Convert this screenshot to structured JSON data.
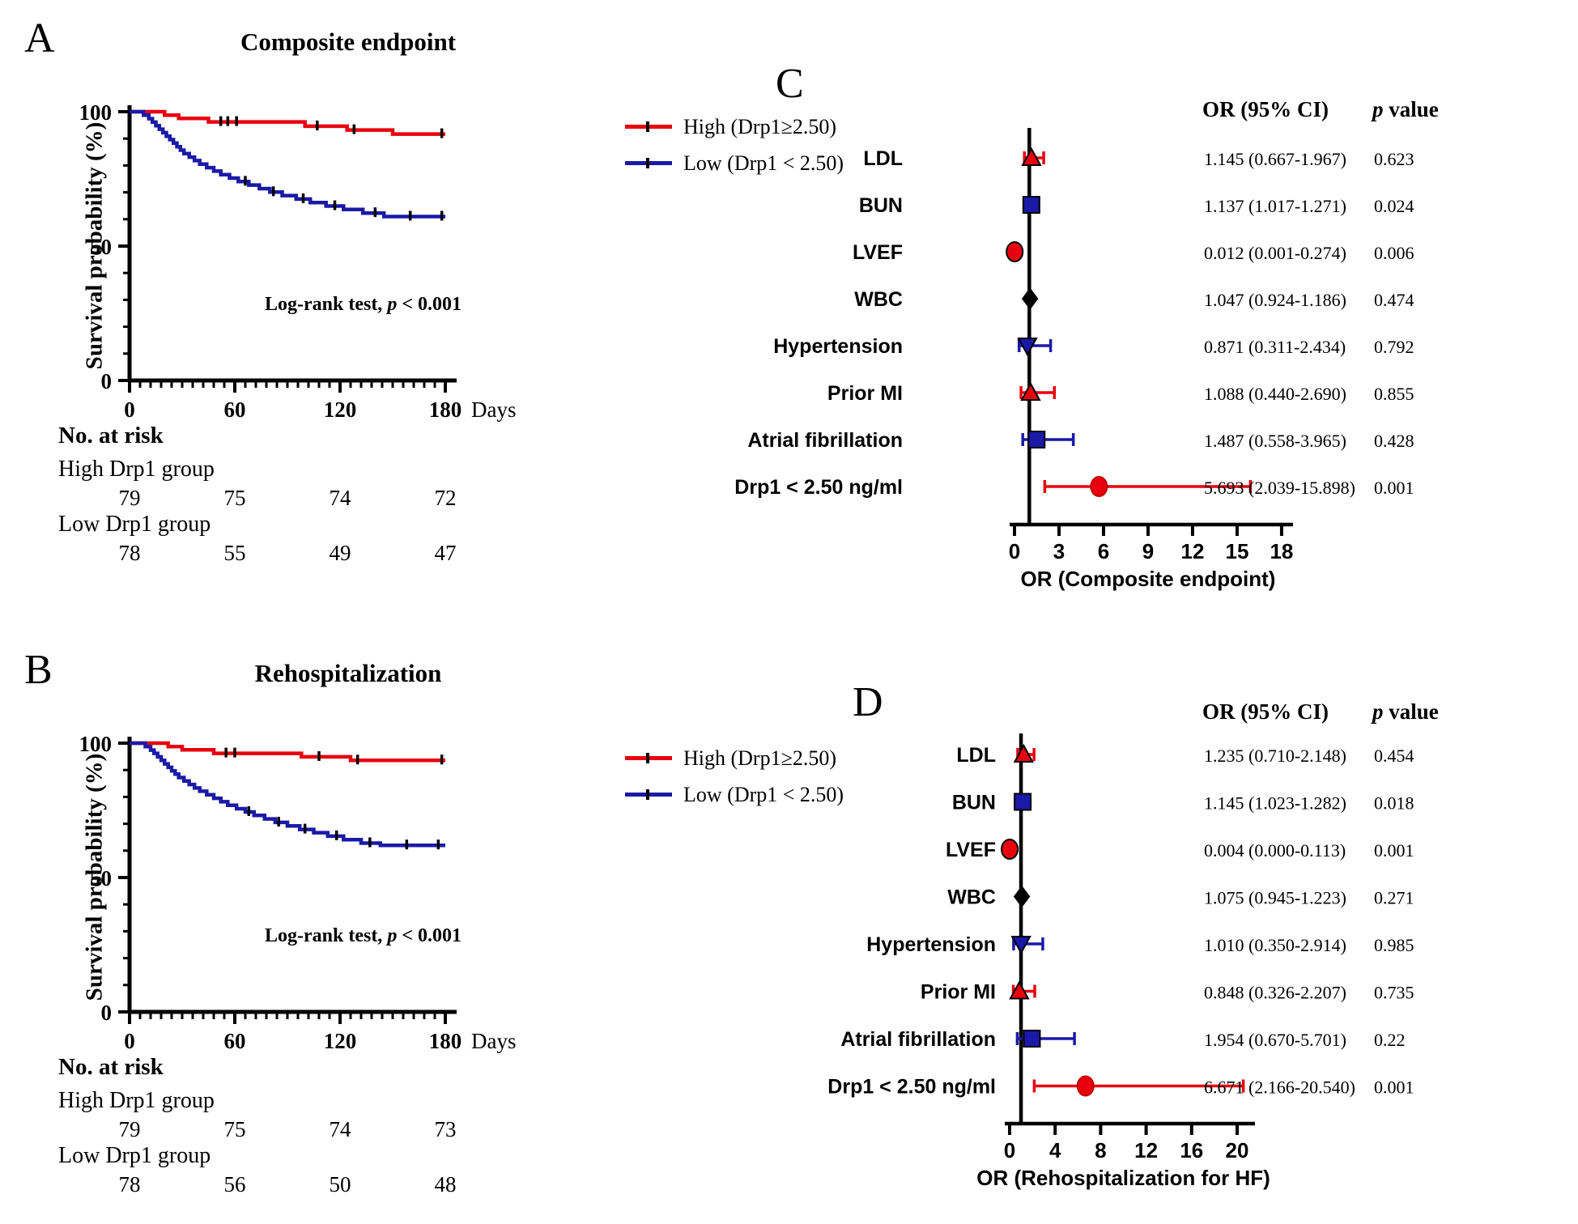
{
  "chart_data": [
    {
      "panel": "A",
      "type": "line",
      "subtype": "kaplan-meier-step",
      "title": "Composite endpoint",
      "xlabel": "Days",
      "ylabel": "Survival probability (%)",
      "xlim": [
        0,
        180
      ],
      "ylim": [
        0,
        100
      ],
      "x_ticks": [
        0,
        60,
        120,
        180
      ],
      "y_ticks": [
        100,
        50,
        0
      ],
      "grid": false,
      "legend_position": "right-top",
      "annotation": {
        "prefix": "Log-rank test,",
        "p": "p",
        "rest": "< 0.001"
      },
      "series": [
        {
          "name": "High (Drp1≥2.50)",
          "color": "#e8000d",
          "steps": [
            [
              0,
              100
            ],
            [
              20,
              100
            ],
            [
              20,
              98.7
            ],
            [
              28,
              98.7
            ],
            [
              28,
              97.5
            ],
            [
              45,
              97.5
            ],
            [
              45,
              96.2
            ],
            [
              100,
              96.2
            ],
            [
              100,
              94.6
            ],
            [
              124,
              94.6
            ],
            [
              124,
              93.2
            ],
            [
              150,
              93.2
            ],
            [
              150,
              91.7
            ],
            [
              180,
              91.7
            ]
          ],
          "censor_marks": [
            [
              52,
              96.2
            ],
            [
              56,
              96.2
            ],
            [
              61,
              96.2
            ],
            [
              107,
              94.6
            ],
            [
              128,
              93.2
            ],
            [
              178,
              91.7
            ]
          ]
        },
        {
          "name": "Low (Drp1 < 2.50)",
          "color": "#1a1aa6",
          "steps": [
            [
              0,
              100
            ],
            [
              8,
              100
            ],
            [
              8,
              98.7
            ],
            [
              11,
              98.7
            ],
            [
              11,
              97.4
            ],
            [
              13,
              97.4
            ],
            [
              13,
              96.1
            ],
            [
              15,
              96.1
            ],
            [
              15,
              94.8
            ],
            [
              17,
              94.8
            ],
            [
              17,
              93.5
            ],
            [
              19,
              93.5
            ],
            [
              19,
              92.2
            ],
            [
              21,
              92.2
            ],
            [
              21,
              90.9
            ],
            [
              23,
              90.9
            ],
            [
              23,
              89.6
            ],
            [
              25,
              89.6
            ],
            [
              25,
              88.3
            ],
            [
              27,
              88.3
            ],
            [
              27,
              87.0
            ],
            [
              29,
              87.0
            ],
            [
              29,
              85.7
            ],
            [
              31,
              85.7
            ],
            [
              31,
              84.4
            ],
            [
              34,
              84.4
            ],
            [
              34,
              83.1
            ],
            [
              37,
              83.1
            ],
            [
              37,
              81.8
            ],
            [
              40,
              81.8
            ],
            [
              40,
              80.5
            ],
            [
              44,
              80.5
            ],
            [
              44,
              79.2
            ],
            [
              48,
              79.2
            ],
            [
              48,
              77.9
            ],
            [
              52,
              77.9
            ],
            [
              52,
              76.6
            ],
            [
              57,
              76.6
            ],
            [
              57,
              75.3
            ],
            [
              62,
              75.3
            ],
            [
              62,
              74.0
            ],
            [
              68,
              74.0
            ],
            [
              68,
              72.7
            ],
            [
              74,
              72.7
            ],
            [
              74,
              71.4
            ],
            [
              80,
              71.4
            ],
            [
              80,
              70.1
            ],
            [
              87,
              70.1
            ],
            [
              87,
              68.8
            ],
            [
              95,
              68.8
            ],
            [
              95,
              67.5
            ],
            [
              103,
              67.5
            ],
            [
              103,
              66.2
            ],
            [
              112,
              66.2
            ],
            [
              112,
              64.9
            ],
            [
              122,
              64.9
            ],
            [
              122,
              63.6
            ],
            [
              133,
              63.6
            ],
            [
              133,
              62.3
            ],
            [
              145,
              62.3
            ],
            [
              145,
              61.0
            ],
            [
              180,
              61.0
            ]
          ],
          "censor_marks": [
            [
              66,
              74.0
            ],
            [
              82,
              70.1
            ],
            [
              99,
              67.5
            ],
            [
              117,
              64.9
            ],
            [
              140,
              62.3
            ],
            [
              160,
              61.0
            ],
            [
              178,
              61.0
            ]
          ]
        }
      ],
      "risk_table": {
        "heading": "No. at risk",
        "time_points": [
          0,
          60,
          120,
          180
        ],
        "rows": [
          {
            "label": "High Drp1 group",
            "counts": [
              79,
              75,
              74,
              72
            ]
          },
          {
            "label": "Low Drp1 group",
            "counts": [
              78,
              55,
              49,
              47
            ]
          }
        ]
      }
    },
    {
      "panel": "B",
      "type": "line",
      "subtype": "kaplan-meier-step",
      "title": "Rehospitalization",
      "xlabel": "Days",
      "ylabel": "Survival probability (%)",
      "xlim": [
        0,
        180
      ],
      "ylim": [
        0,
        100
      ],
      "x_ticks": [
        0,
        60,
        120,
        180
      ],
      "y_ticks": [
        100,
        50,
        0
      ],
      "grid": false,
      "legend_position": "right-top",
      "annotation": {
        "prefix": "Log-rank test,",
        "p": "p",
        "rest": "< 0.001"
      },
      "series": [
        {
          "name": "High (Drp1≥2.50)",
          "color": "#e8000d",
          "steps": [
            [
              0,
              100
            ],
            [
              22,
              100
            ],
            [
              22,
              98.7
            ],
            [
              30,
              98.7
            ],
            [
              30,
              97.5
            ],
            [
              48,
              97.5
            ],
            [
              48,
              96.2
            ],
            [
              98,
              96.2
            ],
            [
              98,
              94.9
            ],
            [
              126,
              94.9
            ],
            [
              126,
              93.6
            ],
            [
              180,
              93.6
            ]
          ],
          "censor_marks": [
            [
              55,
              96.2
            ],
            [
              60,
              96.2
            ],
            [
              108,
              94.9
            ],
            [
              130,
              93.6
            ],
            [
              178,
              93.6
            ]
          ]
        },
        {
          "name": "Low (Drp1 < 2.50)",
          "color": "#1a1aa6",
          "steps": [
            [
              0,
              100
            ],
            [
              9,
              100
            ],
            [
              9,
              98.7
            ],
            [
              12,
              98.7
            ],
            [
              12,
              97.4
            ],
            [
              14,
              97.4
            ],
            [
              14,
              96.2
            ],
            [
              16,
              96.2
            ],
            [
              16,
              94.9
            ],
            [
              18,
              94.9
            ],
            [
              18,
              93.6
            ],
            [
              20,
              93.6
            ],
            [
              20,
              92.3
            ],
            [
              22,
              92.3
            ],
            [
              22,
              91.0
            ],
            [
              24,
              91.0
            ],
            [
              24,
              89.7
            ],
            [
              26,
              89.7
            ],
            [
              26,
              88.5
            ],
            [
              28,
              88.5
            ],
            [
              28,
              87.2
            ],
            [
              31,
              87.2
            ],
            [
              31,
              85.9
            ],
            [
              34,
              85.9
            ],
            [
              34,
              84.6
            ],
            [
              37,
              84.6
            ],
            [
              37,
              83.3
            ],
            [
              40,
              83.3
            ],
            [
              40,
              82.1
            ],
            [
              44,
              82.1
            ],
            [
              44,
              80.8
            ],
            [
              48,
              80.8
            ],
            [
              48,
              79.5
            ],
            [
              52,
              79.5
            ],
            [
              52,
              78.2
            ],
            [
              56,
              78.2
            ],
            [
              56,
              76.9
            ],
            [
              61,
              76.9
            ],
            [
              61,
              75.6
            ],
            [
              66,
              75.6
            ],
            [
              66,
              74.4
            ],
            [
              71,
              74.4
            ],
            [
              71,
              73.1
            ],
            [
              77,
              73.1
            ],
            [
              77,
              71.8
            ],
            [
              83,
              71.8
            ],
            [
              83,
              70.5
            ],
            [
              90,
              70.5
            ],
            [
              90,
              69.2
            ],
            [
              97,
              69.2
            ],
            [
              97,
              67.9
            ],
            [
              105,
              67.9
            ],
            [
              105,
              66.7
            ],
            [
              113,
              66.7
            ],
            [
              113,
              65.4
            ],
            [
              122,
              65.4
            ],
            [
              122,
              64.1
            ],
            [
              132,
              64.1
            ],
            [
              132,
              62.8
            ],
            [
              143,
              62.8
            ],
            [
              143,
              62.0
            ],
            [
              180,
              62.0
            ]
          ],
          "censor_marks": [
            [
              68,
              74.4
            ],
            [
              85,
              70.5
            ],
            [
              100,
              67.9
            ],
            [
              118,
              65.4
            ],
            [
              137,
              62.8
            ],
            [
              158,
              62.0
            ],
            [
              176,
              62.0
            ]
          ]
        }
      ],
      "risk_table": {
        "heading": "No. at risk",
        "time_points": [
          0,
          60,
          120,
          180
        ],
        "rows": [
          {
            "label": "High Drp1 group",
            "counts": [
              79,
              75,
              74,
              73
            ]
          },
          {
            "label": "Low Drp1 group",
            "counts": [
              78,
              56,
              50,
              48
            ]
          }
        ]
      }
    },
    {
      "panel": "C",
      "type": "scatter",
      "subtype": "forest-plot",
      "header": {
        "or": "OR (95% CI)",
        "p_italic": "p",
        "p_rest": "value"
      },
      "xlabel": "OR (Composite endpoint)",
      "x_ticks": [
        0,
        3,
        6,
        9,
        12,
        15,
        18
      ],
      "ref_line": 1,
      "rows": [
        {
          "label": "LDL",
          "or": 1.145,
          "lo": 0.667,
          "hi": 1.967,
          "or_text": "1.145 (0.667-1.967)",
          "p": "0.623",
          "marker": "triangle-up",
          "color": "#e8000d",
          "ci_color": "#e8000d"
        },
        {
          "label": "BUN",
          "or": 1.137,
          "lo": 1.017,
          "hi": 1.271,
          "or_text": "1.137 (1.017-1.271)",
          "p": "0.024",
          "marker": "square",
          "color": "#1a1aa6",
          "ci_color": "#000000"
        },
        {
          "label": "LVEF",
          "or": 0.012,
          "lo": 0.001,
          "hi": 0.274,
          "or_text": "0.012 (0.001-0.274)",
          "p": "0.006",
          "marker": "circle",
          "color": "#e8000d",
          "ci_color": "#000000"
        },
        {
          "label": "WBC",
          "or": 1.047,
          "lo": 0.924,
          "hi": 1.186,
          "or_text": "1.047 (0.924-1.186)",
          "p": "0.474",
          "marker": "diamond",
          "color": "#000000",
          "ci_color": "#000000"
        },
        {
          "label": "Hypertension",
          "or": 0.871,
          "lo": 0.311,
          "hi": 2.434,
          "or_text": "0.871 (0.311-2.434)",
          "p": "0.792",
          "marker": "triangle-down",
          "color": "#1a1aa6",
          "ci_color": "#1a1aa6"
        },
        {
          "label": "Prior MI",
          "or": 1.088,
          "lo": 0.44,
          "hi": 2.69,
          "or_text": "1.088 (0.440-2.690)",
          "p": "0.855",
          "marker": "triangle-up",
          "color": "#e8000d",
          "ci_color": "#e8000d"
        },
        {
          "label": "Atrial fibrillation",
          "or": 1.487,
          "lo": 0.558,
          "hi": 3.965,
          "or_text": "1.487 (0.558-3.965)",
          "p": "0.428",
          "marker": "square",
          "color": "#1a1aa6",
          "ci_color": "#1a1aa6"
        },
        {
          "label": "Drp1 < 2.50 ng/ml",
          "or": 5.693,
          "lo": 2.039,
          "hi": 15.898,
          "or_text": "5.693 (2.039-15.898)",
          "p": "0.001",
          "marker": "circle",
          "color": "#e8000d",
          "ci_color": "#e8000d",
          "marker_stroke": "#c00000"
        }
      ]
    },
    {
      "panel": "D",
      "type": "scatter",
      "subtype": "forest-plot",
      "header": {
        "or": "OR (95% CI)",
        "p_italic": "p",
        "p_rest": "value"
      },
      "xlabel": "OR (Rehospitalization for HF)",
      "x_ticks": [
        0,
        4,
        8,
        12,
        16,
        20
      ],
      "ref_line": 1,
      "rows": [
        {
          "label": "LDL",
          "or": 1.235,
          "lo": 0.71,
          "hi": 2.148,
          "or_text": "1.235 (0.710-2.148)",
          "p": "0.454",
          "marker": "triangle-up",
          "color": "#e8000d",
          "ci_color": "#e8000d"
        },
        {
          "label": "BUN",
          "or": 1.145,
          "lo": 1.023,
          "hi": 1.282,
          "or_text": "1.145 (1.023-1.282)",
          "p": "0.018",
          "marker": "square",
          "color": "#1a1aa6",
          "ci_color": "#000000"
        },
        {
          "label": "LVEF",
          "or": 0.004,
          "lo": 0.0,
          "hi": 0.113,
          "or_text": "0.004 (0.000-0.113)",
          "p": "0.001",
          "marker": "circle",
          "color": "#e8000d",
          "ci_color": "#000000"
        },
        {
          "label": "WBC",
          "or": 1.075,
          "lo": 0.945,
          "hi": 1.223,
          "or_text": "1.075 (0.945-1.223)",
          "p": "0.271",
          "marker": "diamond",
          "color": "#000000",
          "ci_color": "#000000"
        },
        {
          "label": "Hypertension",
          "or": 1.01,
          "lo": 0.35,
          "hi": 2.914,
          "or_text": "1.010 (0.350-2.914)",
          "p": "0.985",
          "marker": "triangle-down",
          "color": "#1a1aa6",
          "ci_color": "#1a1aa6"
        },
        {
          "label": "Prior MI",
          "or": 0.848,
          "lo": 0.326,
          "hi": 2.207,
          "or_text": "0.848 (0.326-2.207)",
          "p": "0.735",
          "marker": "triangle-up",
          "color": "#e8000d",
          "ci_color": "#e8000d"
        },
        {
          "label": "Atrial fibrillation",
          "or": 1.954,
          "lo": 0.67,
          "hi": 5.701,
          "or_text": "1.954 (0.670-5.701)",
          "p": "0.22",
          "marker": "square",
          "color": "#1a1aa6",
          "ci_color": "#1a1aa6"
        },
        {
          "label": "Drp1 < 2.50 ng/ml",
          "or": 6.671,
          "lo": 2.166,
          "hi": 20.54,
          "or_text": "6.671 (2.166-20.540)",
          "p": "0.001",
          "marker": "circle",
          "color": "#e8000d",
          "ci_color": "#e8000d",
          "marker_stroke": "#c00000"
        }
      ]
    }
  ]
}
